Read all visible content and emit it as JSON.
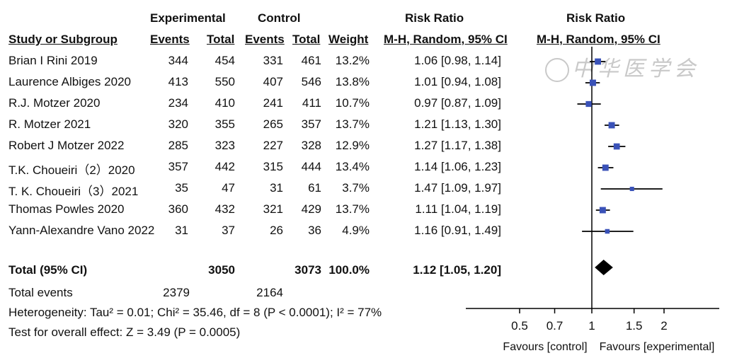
{
  "headers": {
    "experimental_group": "Experimental",
    "control_group": "Control",
    "risk_ratio_text": "Risk Ratio",
    "risk_ratio_plot": "Risk Ratio",
    "study": "Study or Subgroup",
    "events_exp": "Events",
    "total_exp": "Total",
    "events_ctrl": "Events",
    "total_ctrl": "Total",
    "weight": "Weight",
    "method_text": "M-H, Random, 95% CI",
    "method_plot": "M-H, Random, 95% CI"
  },
  "rows": [
    {
      "study": "Brian I Rini 2019",
      "exp_events": "344",
      "exp_total": "454",
      "ctrl_events": "331",
      "ctrl_total": "461",
      "weight": "13.2%",
      "ci": "1.06 [0.98, 1.14]"
    },
    {
      "study": "Laurence Albiges 2020",
      "exp_events": "413",
      "exp_total": "550",
      "ctrl_events": "407",
      "ctrl_total": "546",
      "weight": "13.8%",
      "ci": "1.01 [0.94, 1.08]"
    },
    {
      "study": "R.J. Motzer 2020",
      "exp_events": "234",
      "exp_total": "410",
      "ctrl_events": "241",
      "ctrl_total": "411",
      "weight": "10.7%",
      "ci": "0.97 [0.87, 1.09]"
    },
    {
      "study": "R. Motzer 2021",
      "exp_events": "320",
      "exp_total": "355",
      "ctrl_events": "265",
      "ctrl_total": "357",
      "weight": "13.7%",
      "ci": "1.21 [1.13, 1.30]"
    },
    {
      "study": "Robert J Motzer 2022",
      "exp_events": "285",
      "exp_total": "323",
      "ctrl_events": "227",
      "ctrl_total": "328",
      "weight": "12.9%",
      "ci": "1.27 [1.17, 1.38]"
    },
    {
      "study": "T.K. Choueiri（2）2020",
      "exp_events": "357",
      "exp_total": "442",
      "ctrl_events": "315",
      "ctrl_total": "444",
      "weight": "13.4%",
      "ci": "1.14 [1.06, 1.23]"
    },
    {
      "study": "T. K. Choueiri（3）2021",
      "exp_events": "35",
      "exp_total": "47",
      "ctrl_events": "31",
      "ctrl_total": "61",
      "weight": "3.7%",
      "ci": "1.47 [1.09, 1.97]"
    },
    {
      "study": "Thomas Powles 2020",
      "exp_events": "360",
      "exp_total": "432",
      "ctrl_events": "321",
      "ctrl_total": "429",
      "weight": "13.7%",
      "ci": "1.11 [1.04, 1.19]"
    },
    {
      "study": "Yann-Alexandre Vano 2022",
      "exp_events": "31",
      "exp_total": "37",
      "ctrl_events": "26",
      "ctrl_total": "36",
      "weight": "4.9%",
      "ci": "1.16 [0.91, 1.49]"
    }
  ],
  "total": {
    "label": "Total (95% CI)",
    "exp_total": "3050",
    "ctrl_total": "3073",
    "weight": "100.0%",
    "ci": "1.12 [1.05, 1.20]"
  },
  "total_events": {
    "label": "Total events",
    "exp": "2379",
    "ctrl": "2164"
  },
  "heterogeneity": "Heterogeneity: Tau² = 0.01; Chi² = 35.46, df = 8 (P < 0.0001); I² = 77%",
  "overall_effect": "Test for overall effect: Z = 3.49 (P = 0.0005)",
  "favours_left": "Favours [control]",
  "favours_right": "Favours [experimental]",
  "watermark": "中华医学会",
  "colors": {
    "square": "#3a52b8",
    "line": "#000000"
  },
  "chart_data": {
    "type": "forest",
    "scale": "log",
    "xlim": [
      0.5,
      2
    ],
    "xticks": [
      0.5,
      0.7,
      1,
      1.5,
      2
    ],
    "xtick_labels": [
      "0.5",
      "0.7",
      "1",
      "1.5",
      "2"
    ],
    "reference_line": 1,
    "studies": [
      {
        "name": "Brian I Rini 2019",
        "rr": 1.06,
        "lo": 0.98,
        "hi": 1.14,
        "weight": 13.2
      },
      {
        "name": "Laurence Albiges 2020",
        "rr": 1.01,
        "lo": 0.94,
        "hi": 1.08,
        "weight": 13.8
      },
      {
        "name": "R.J. Motzer 2020",
        "rr": 0.97,
        "lo": 0.87,
        "hi": 1.09,
        "weight": 10.7
      },
      {
        "name": "R. Motzer 2021",
        "rr": 1.21,
        "lo": 1.13,
        "hi": 1.3,
        "weight": 13.7
      },
      {
        "name": "Robert J Motzer 2022",
        "rr": 1.27,
        "lo": 1.17,
        "hi": 1.38,
        "weight": 12.9
      },
      {
        "name": "T.K. Choueiri（2）2020",
        "rr": 1.14,
        "lo": 1.06,
        "hi": 1.23,
        "weight": 13.4
      },
      {
        "name": "T. K. Choueiri（3）2021",
        "rr": 1.47,
        "lo": 1.09,
        "hi": 1.97,
        "weight": 3.7
      },
      {
        "name": "Thomas Powles 2020",
        "rr": 1.11,
        "lo": 1.04,
        "hi": 1.19,
        "weight": 13.7
      },
      {
        "name": "Yann-Alexandre Vano 2022",
        "rr": 1.16,
        "lo": 0.91,
        "hi": 1.49,
        "weight": 4.9
      }
    ],
    "pooled": {
      "rr": 1.12,
      "lo": 1.05,
      "hi": 1.2
    }
  }
}
